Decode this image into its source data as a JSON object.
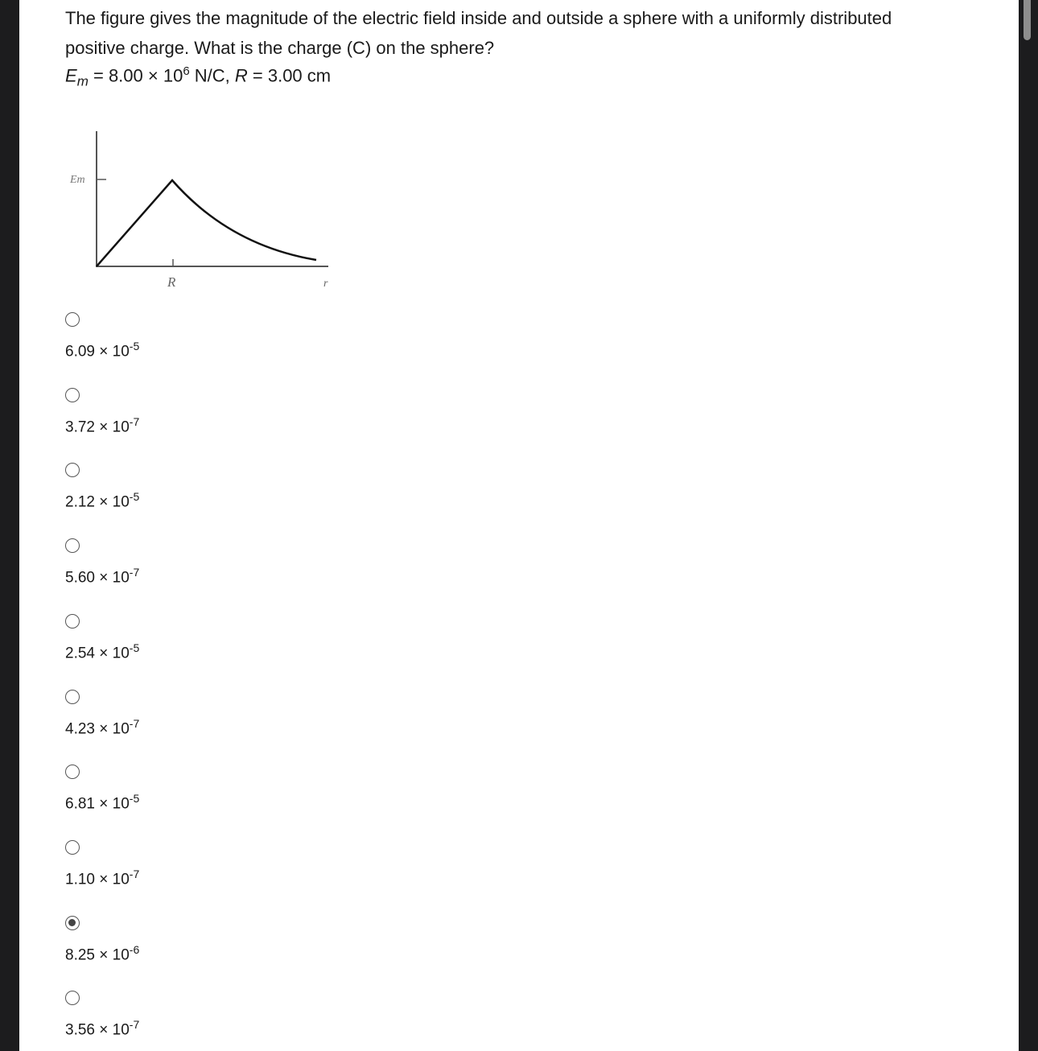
{
  "question": {
    "text": "The figure gives the magnitude of the electric field inside and outside a sphere with a uniformly distributed positive charge. What is the charge (C) on the sphere?",
    "given": {
      "em_symbol": "E",
      "em_sub": "m",
      "em_value": "= 8.00 × 10",
      "em_exp": "6",
      "em_unit": " N/C, ",
      "r_symbol": "R",
      "r_value": " = 3.00 cm"
    }
  },
  "figure": {
    "y_tick_label": "Em",
    "x_tick_label": "R",
    "x_axis_label": "r"
  },
  "options": [
    {
      "mantissa": "6.09 × 10",
      "exp": "-5",
      "selected": false
    },
    {
      "mantissa": "3.72 × 10",
      "exp": "-7",
      "selected": false
    },
    {
      "mantissa": "2.12 × 10",
      "exp": "-5",
      "selected": false
    },
    {
      "mantissa": "5.60 × 10",
      "exp": "-7",
      "selected": false
    },
    {
      "mantissa": "2.54 × 10",
      "exp": "-5",
      "selected": false
    },
    {
      "mantissa": "4.23 × 10",
      "exp": "-7",
      "selected": false
    },
    {
      "mantissa": "6.81 × 10",
      "exp": "-5",
      "selected": false
    },
    {
      "mantissa": "1.10 × 10",
      "exp": "-7",
      "selected": false
    },
    {
      "mantissa": "8.25 × 10",
      "exp": "-6",
      "selected": true
    },
    {
      "mantissa": "3.56 × 10",
      "exp": "-7",
      "selected": false
    }
  ]
}
